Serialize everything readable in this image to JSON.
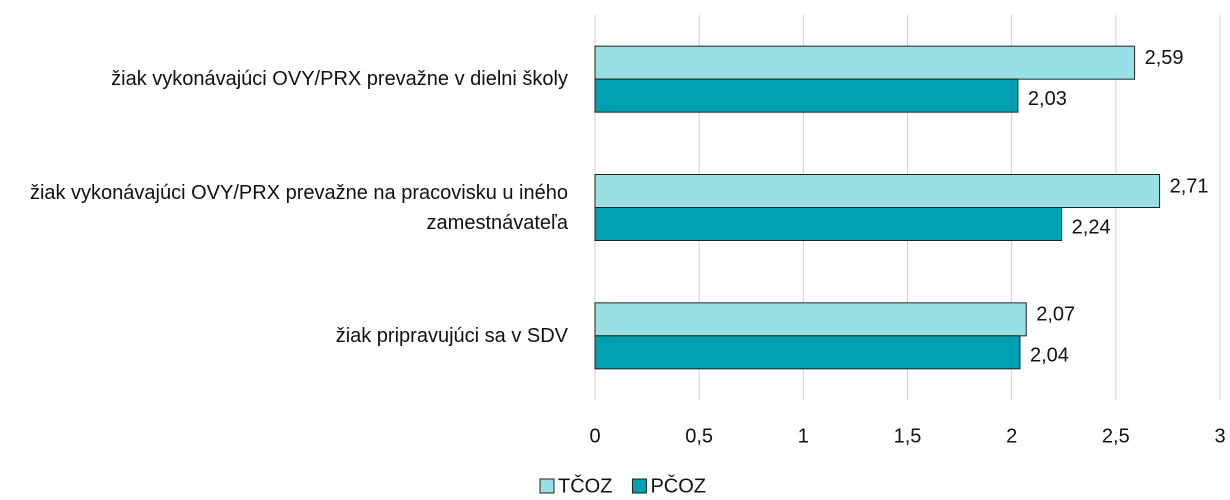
{
  "chart_data": {
    "type": "hbar",
    "categories": [
      "žiak vykonávajúci OVY/PRX prevažne v dielni školy",
      "žiak vykonávajúci OVY/PRX prevažne na pracovisku u iného zamestnávateľa",
      "žiak pripravujúci sa v SDV"
    ],
    "series": [
      {
        "name": "TČOZ",
        "color": "#99dfe4",
        "values": [
          2.59,
          2.71,
          2.07
        ],
        "value_labels": [
          "2,59",
          "2,71",
          "2,07"
        ]
      },
      {
        "name": "PČOZ",
        "color": "#00a0b0",
        "values": [
          2.03,
          2.24,
          2.04
        ],
        "value_labels": [
          "2,03",
          "2,24",
          "2,04"
        ]
      }
    ],
    "xlim": [
      0,
      3
    ],
    "xticks": [
      0,
      {
        "value": 0.5,
        "label": "0,5"
      },
      1,
      {
        "value": 1.5,
        "label": "1,5"
      },
      2,
      {
        "value": 2.5,
        "label": "2,5"
      },
      3
    ],
    "grid": true,
    "legend": "bottom"
  }
}
